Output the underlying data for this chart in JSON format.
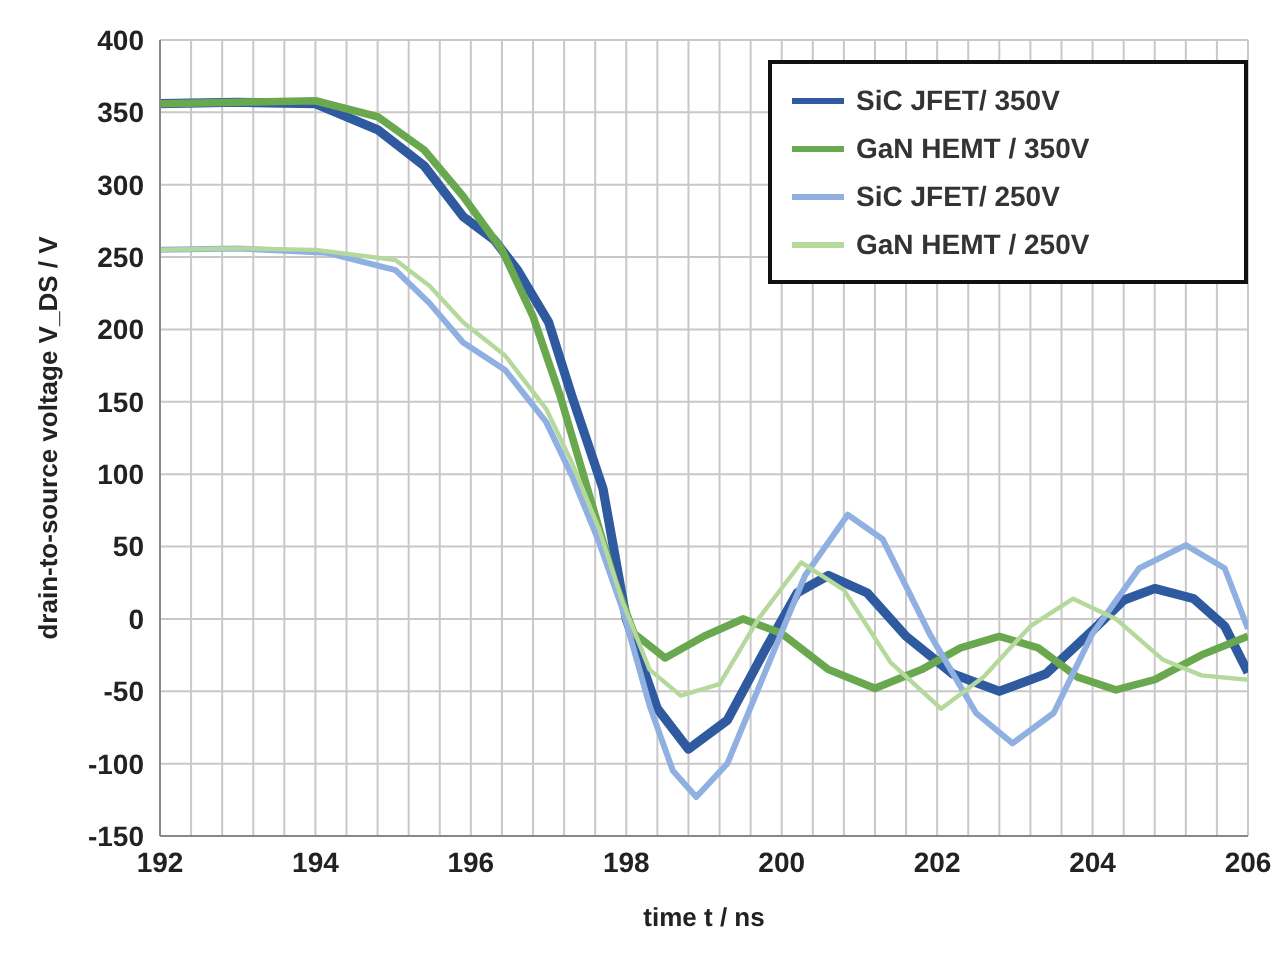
{
  "chart_data": {
    "type": "line",
    "xlabel": "time t / ns",
    "ylabel": "drain-to-source voltage V_DS / V",
    "xlim": [
      192,
      206
    ],
    "ylim": [
      -150,
      400
    ],
    "xticks": [
      192,
      {
        "value": 192.4,
        "label": null
      },
      {
        "value": 192.8,
        "label": null
      },
      {
        "value": 193.2,
        "label": null
      },
      {
        "value": 193.6,
        "label": null
      },
      194,
      {
        "value": 194.4,
        "label": null
      },
      {
        "value": 194.8,
        "label": null
      },
      {
        "value": 195.2,
        "label": null
      },
      {
        "value": 195.6,
        "label": null
      },
      196,
      {
        "value": 196.4,
        "label": null
      },
      {
        "value": 196.8,
        "label": null
      },
      {
        "value": 197.2,
        "label": null
      },
      {
        "value": 197.6,
        "label": null
      },
      198,
      {
        "value": 198.4,
        "label": null
      },
      {
        "value": 198.8,
        "label": null
      },
      {
        "value": 199.2,
        "label": null
      },
      {
        "value": 199.6,
        "label": null
      },
      200,
      {
        "value": 200.4,
        "label": null
      },
      {
        "value": 200.8,
        "label": null
      },
      {
        "value": 201.2,
        "label": null
      },
      {
        "value": 201.6,
        "label": null
      },
      202,
      {
        "value": 202.4,
        "label": null
      },
      {
        "value": 202.8,
        "label": null
      },
      {
        "value": 203.2,
        "label": null
      },
      {
        "value": 203.6,
        "label": null
      },
      204,
      {
        "value": 204.4,
        "label": null
      },
      {
        "value": 204.8,
        "label": null
      },
      {
        "value": 205.2,
        "label": null
      },
      {
        "value": 205.6,
        "label": null
      },
      206
    ],
    "yticks": [
      -150,
      -100,
      -50,
      0,
      50,
      100,
      150,
      200,
      250,
      300,
      350,
      400
    ],
    "grid": true,
    "legend": "top right",
    "marker": "none",
    "line_style": "solid",
    "series": [
      {
        "name": "SiC JFET/ 350V",
        "color": "#2f5aa0",
        "x": [
          192,
          193,
          194,
          194.8,
          195.4,
          195.9,
          196.3,
          196.6,
          197,
          197.3,
          197.7,
          198,
          198.4,
          198.8,
          199.3,
          199.8,
          200.2,
          200.6,
          201.1,
          201.6,
          202.2,
          202.8,
          203.4,
          204,
          204.4,
          204.8,
          205.3,
          205.7,
          206
        ],
        "values": [
          356,
          357,
          356,
          338,
          313,
          278,
          262,
          241,
          205,
          154,
          90,
          0,
          -62,
          -90,
          -70,
          -20,
          18,
          30,
          18,
          -12,
          -38,
          -50,
          -38,
          -8,
          13,
          21,
          14,
          -5,
          -37
        ]
      },
      {
        "name": "GaN HEMT / 350V",
        "color": "#6aa84f",
        "x": [
          192,
          193,
          194,
          194.8,
          195.4,
          195.9,
          196.4,
          196.8,
          197.15,
          197.5,
          197.85,
          198.1,
          198.5,
          199,
          199.5,
          200,
          200.6,
          201.2,
          201.8,
          202.3,
          202.8,
          203.3,
          203.8,
          204.3,
          204.8,
          205.4,
          206
        ],
        "values": [
          356,
          357,
          358,
          347,
          324,
          292,
          255,
          209,
          154,
          90,
          26,
          -10,
          -27,
          -12,
          0,
          -10,
          -35,
          -48,
          -35,
          -20,
          -12,
          -20,
          -40,
          -49,
          -42,
          -25,
          -12
        ]
      },
      {
        "name": "SiC JFET/ 250V",
        "color": "#8fb0e0",
        "x": [
          192,
          193,
          194.15,
          195.03,
          195.47,
          195.9,
          196.44,
          196.97,
          197.3,
          197.65,
          197.95,
          198.3,
          198.6,
          198.9,
          199.3,
          199.8,
          200.3,
          200.85,
          201.3,
          201.9,
          202.5,
          202.97,
          203.5,
          204,
          204.6,
          205.2,
          205.7,
          206
        ],
        "values": [
          255,
          256,
          253,
          241,
          218,
          191,
          172,
          136,
          99,
          53,
          7,
          -60,
          -105,
          -123,
          -100,
          -35,
          30,
          72,
          55,
          -10,
          -65,
          -86,
          -65,
          -10,
          35,
          51,
          35,
          -7
        ]
      },
      {
        "name": "GaN HEMT / 250V",
        "color": "#b5d99c",
        "x": [
          192,
          193,
          194,
          195.03,
          195.47,
          195.9,
          196.44,
          196.97,
          197.3,
          197.65,
          197.95,
          198.3,
          198.7,
          199.2,
          199.7,
          200.25,
          200.8,
          201.4,
          202.05,
          202.6,
          203.2,
          203.75,
          204.3,
          204.9,
          205.4,
          206
        ],
        "values": [
          255,
          256,
          255,
          248,
          230,
          205,
          182,
          145,
          108,
          62,
          12,
          -35,
          -53,
          -45,
          0,
          39,
          20,
          -30,
          -62,
          -40,
          -5,
          14,
          0,
          -28,
          -39,
          -42
        ]
      }
    ]
  }
}
